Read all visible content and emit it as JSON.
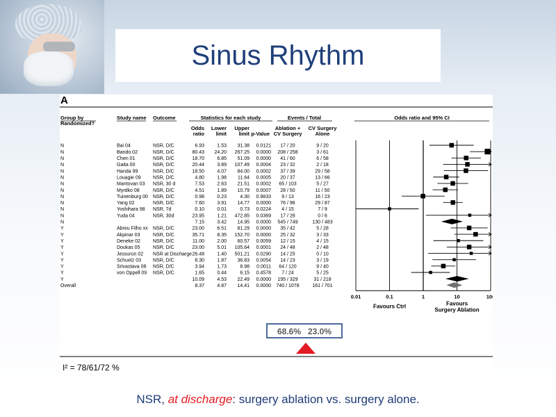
{
  "slide": {
    "title": "Sinus Rhythm",
    "caption_prefix": "NSR, ",
    "caption_em": "at discharge",
    "caption_suffix": ": surgery  ablation vs. surgery alone."
  },
  "chart_data": {
    "type": "forest",
    "panel_label": "A",
    "headers": {
      "group": "Group by",
      "group2": "Randomized?",
      "study": "Study name",
      "outcome": "Outcome",
      "stats": "Statistics for each study",
      "events": "Events / Total",
      "plot": "Odds ratio and 95% CI",
      "or1": "Odds",
      "or2": "ratio",
      "lo1": "Lower",
      "lo2": "limit",
      "hi1": "Upper",
      "hi2": "limit",
      "p": "p-Value",
      "abl1": "Ablation +",
      "abl2": "CV Surgery",
      "cv1": "CV Surgery",
      "cv2": "Alone"
    },
    "rows": [
      {
        "group": "N",
        "study": "Bai 04",
        "outcome": "NSR, D/C",
        "or": "6.93",
        "lo": "1.53",
        "hi": "31.38",
        "p": "0.0121",
        "abl": "17 / 20",
        "cv": "9 / 20",
        "kind": "study",
        "ort": 6.93,
        "lot": 1.53,
        "hit": 31.38,
        "w": "m"
      },
      {
        "group": "N",
        "study": "Bando 02",
        "outcome": "NSR, D/C",
        "or": "80.43",
        "lo": "24.20",
        "hi": "267.25",
        "p": "0.0000",
        "abl": "208 / 258",
        "cv": "3 / 61",
        "kind": "study",
        "ort": 80.43,
        "lot": 24.2,
        "hit": 267.25,
        "w": "l"
      },
      {
        "group": "N",
        "study": "Chen 01",
        "outcome": "NSR, D/C",
        "or": "18.70",
        "lo": "6.85",
        "hi": "51.09",
        "p": "0.0000",
        "abl": "41 / 60",
        "cv": "6 / 58",
        "kind": "study",
        "ort": 18.7,
        "lot": 6.85,
        "hit": 51.09,
        "w": "m"
      },
      {
        "group": "N",
        "study": "Gaita 00",
        "outcome": "NSR, D/C",
        "or": "20.44",
        "lo": "3.89",
        "hi": "107.49",
        "p": "0.0004",
        "abl": "23 / 32",
        "cv": "2 / 18",
        "kind": "study",
        "ort": 20.44,
        "lot": 3.89,
        "hit": 107.49,
        "w": "m"
      },
      {
        "group": "N",
        "study": "Handa 99",
        "outcome": "NSR, D/C",
        "or": "18.50",
        "lo": "4.07",
        "hi": "84.00",
        "p": "0.0002",
        "abl": "37 / 39",
        "cv": "29 / 58",
        "kind": "study",
        "ort": 18.5,
        "lot": 4.07,
        "hit": 84.0,
        "w": "m"
      },
      {
        "group": "N",
        "study": "Louagie 09",
        "outcome": "NSR, D/C",
        "or": "4.80",
        "lo": "1.98",
        "hi": "11.64",
        "p": "0.0005",
        "abl": "20 / 37",
        "cv": "13 / 66",
        "kind": "study",
        "ort": 4.8,
        "lot": 1.98,
        "hit": 11.64,
        "w": "m"
      },
      {
        "group": "N",
        "study": "Mantovan 03",
        "outcome": "NSR, 30 d",
        "or": "7.53",
        "lo": "2.63",
        "hi": "21.51",
        "p": "0.0002",
        "abl": "65 / 103",
        "cv": "5 / 27",
        "kind": "study",
        "ort": 7.53,
        "lot": 2.63,
        "hit": 21.51,
        "w": "m"
      },
      {
        "group": "N",
        "study": "Myrdko 08",
        "outcome": "NSR, D/C",
        "or": "4.51",
        "lo": "1.89",
        "hi": "10.79",
        "p": "0.0007",
        "abl": "28 / 50",
        "cv": "11 / 50",
        "kind": "study",
        "ort": 4.51,
        "lot": 1.89,
        "hit": 10.79,
        "w": "m"
      },
      {
        "group": "N",
        "study": "Tuinenburg 00",
        "outcome": "NSR, D/C",
        "or": "0.98",
        "lo": "0.23",
        "hi": "4.30",
        "p": "0.9833",
        "abl": "9 / 13",
        "cv": "16 / 23",
        "kind": "study",
        "ort": 0.98,
        "lot": 0.23,
        "hit": 4.3,
        "w": "m"
      },
      {
        "group": "N",
        "study": "Yang 02",
        "outcome": "NSR, D/C",
        "or": "7.60",
        "lo": "3.91",
        "hi": "14.77",
        "p": "0.0000",
        "abl": "76 / 96",
        "cv": "29 / 87",
        "kind": "study",
        "ort": 7.6,
        "lot": 3.91,
        "hit": 14.77,
        "w": "m"
      },
      {
        "group": "N",
        "study": "Yoshihara 98",
        "outcome": "NSR, 7d",
        "or": "0.10",
        "lo": "0.01",
        "hi": "0.73",
        "p": "0.0224",
        "abl": "4 / 15",
        "cv": "7 / 9",
        "kind": "study",
        "ort": 0.1,
        "lot": 0.01,
        "hit": 0.73,
        "w": "s"
      },
      {
        "group": "N",
        "study": "Yuda 04",
        "outcome": "NSR, 30d",
        "or": "23.95",
        "lo": "1.21",
        "hi": "472.85",
        "p": "0.0369",
        "abl": "17 / 26",
        "cv": "0 / 6",
        "kind": "study",
        "ort": 23.95,
        "lot": 1.21,
        "hit": 472.85,
        "w": "s"
      },
      {
        "group": "N",
        "study": "",
        "outcome": "",
        "or": "7.15",
        "lo": "3.42",
        "hi": "14.95",
        "p": "0.0000",
        "abl": "545 / 749",
        "cv": "130 / 483",
        "kind": "subtotal",
        "ort": 7.15,
        "lot": 3.42,
        "hit": 14.95
      },
      {
        "group": "Y",
        "study": "Abreu Filho xx",
        "outcome": "NSR, D/C",
        "or": "23.00",
        "lo": "6.51",
        "hi": "81.29",
        "p": "0.0000",
        "abl": "35 / 42",
        "cv": "5 / 28",
        "kind": "study",
        "ort": 23.0,
        "lot": 6.51,
        "hit": 81.29,
        "w": "m"
      },
      {
        "group": "Y",
        "study": "Akpinar 03",
        "outcome": "NSR, D/C",
        "or": "35.71",
        "lo": "8.35",
        "hi": "152.70",
        "p": "0.0000",
        "abl": "25 / 32",
        "cv": "3 / 33",
        "kind": "study",
        "ort": 35.71,
        "lot": 8.35,
        "hit": 152.7,
        "w": "m"
      },
      {
        "group": "Y",
        "study": "Deneke 02",
        "outcome": "NSR, D/C",
        "or": "11.00",
        "lo": "2.00",
        "hi": "60.57",
        "p": "0.0059",
        "abl": "12 / 15",
        "cv": "4 / 15",
        "kind": "study",
        "ort": 11.0,
        "lot": 2.0,
        "hit": 60.57,
        "w": "s"
      },
      {
        "group": "Y",
        "study": "Doukas 05",
        "outcome": "NSR, D/C",
        "or": "23.00",
        "lo": "5.01",
        "hi": "105.64",
        "p": "0.0001",
        "abl": "24 / 48",
        "cv": "2 / 48",
        "kind": "study",
        "ort": 23.0,
        "lot": 5.01,
        "hit": 105.64,
        "w": "m"
      },
      {
        "group": "Y",
        "study": "Jessurun 02",
        "outcome": "NSR at Discharge",
        "or": "26.48",
        "lo": "1.40",
        "hi": "501.21",
        "p": "0.0290",
        "abl": "14 / 25",
        "cv": "0 / 10",
        "kind": "study",
        "ort": 26.48,
        "lot": 1.4,
        "hit": 501.21,
        "w": "s"
      },
      {
        "group": "Y",
        "study": "Schuetz 03",
        "outcome": "NSR, D/C",
        "or": "8.30",
        "lo": "1.87",
        "hi": "36.83",
        "p": "0.0054",
        "abl": "14 / 23",
        "cv": "3 / 19",
        "kind": "study",
        "ort": 8.3,
        "lot": 1.87,
        "hit": 36.83,
        "w": "s"
      },
      {
        "group": "Y",
        "study": "Srivastava 08",
        "outcome": "NSR, D/C",
        "or": "3.94",
        "lo": "1.73",
        "hi": "8.98",
        "p": "0.0011",
        "abl": "64 / 120",
        "cv": "9 / 40",
        "kind": "study",
        "ort": 3.94,
        "lot": 1.73,
        "hit": 8.98,
        "w": "m"
      },
      {
        "group": "Y",
        "study": "von Oppell 09",
        "outcome": "NSR, D/C",
        "or": "1.65",
        "lo": "0.44",
        "hi": "6.15",
        "p": "0.4578",
        "abl": "7 / 24",
        "cv": "5 / 25",
        "kind": "study",
        "ort": 1.65,
        "lot": 0.44,
        "hit": 6.15,
        "w": "s"
      },
      {
        "group": "Y",
        "study": "",
        "outcome": "",
        "or": "10.09",
        "lo": "4.53",
        "hi": "22.49",
        "p": "0.0000",
        "abl": "195 / 329",
        "cv": "31 / 218",
        "kind": "subtotal",
        "ort": 10.09,
        "lot": 4.53,
        "hit": 22.49
      },
      {
        "group": "Overall",
        "study": "",
        "outcome": "",
        "or": "8.37",
        "lo": "4.87",
        "hi": "14.41",
        "p": "0.0000",
        "abl": "740 / 1078",
        "cv": "161 / 701",
        "kind": "overall",
        "ort": 8.37,
        "lot": 4.87,
        "hit": 14.41
      }
    ],
    "x_scale": "log",
    "xlim": [
      0.01,
      100
    ],
    "x_ticks": [
      {
        "value": 0.01,
        "label": "0.01"
      },
      {
        "value": 0.1,
        "label": "0.1"
      },
      {
        "value": 1,
        "label": "1"
      },
      {
        "value": 10,
        "label": "10"
      },
      {
        "value": 100,
        "label": "100"
      }
    ],
    "favours_left": "Favours Ctrl",
    "favours_right1": "Favours",
    "favours_right2": "Surgery Ablation",
    "highlight": "68.6%   23.0%",
    "heterogeneity": "I² = 78/61/72 %",
    "colors": {
      "marker": "#000000",
      "subtotal": "#000000",
      "overall": "#707070",
      "arrow": "#e31b23",
      "highlight_border": "#4b6a9b",
      "highlight_text": "#5b5b5b"
    }
  }
}
